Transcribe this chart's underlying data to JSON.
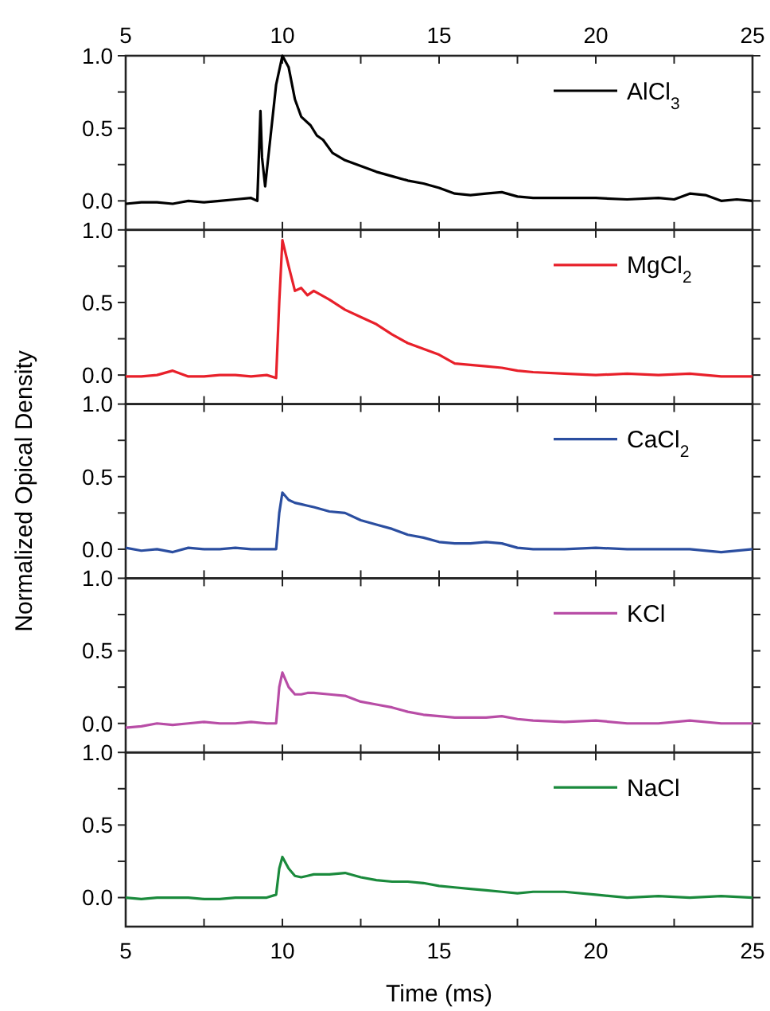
{
  "chart_data": [
    {
      "type": "line",
      "x": [
        5,
        5.5,
        6,
        6.5,
        7,
        7.5,
        8,
        8.5,
        9,
        9.2,
        9.3,
        9.35,
        9.45,
        9.6,
        9.8,
        10.0,
        10.2,
        10.4,
        10.6,
        10.9,
        11.1,
        11.3,
        11.6,
        12,
        12.5,
        13,
        13.5,
        14,
        14.5,
        15,
        15.5,
        16,
        16.5,
        17,
        17.5,
        18,
        19,
        20,
        21,
        22,
        22.5,
        23,
        23.5,
        24,
        24.5,
        25
      ],
      "series": [
        {
          "name": "AlCl$_{3}$",
          "color": "#000000",
          "values": [
            -0.02,
            -0.01,
            -0.01,
            -0.02,
            0.0,
            -0.01,
            0.0,
            0.01,
            0.02,
            0.0,
            0.62,
            0.3,
            0.1,
            0.4,
            0.8,
            1.0,
            0.92,
            0.7,
            0.58,
            0.52,
            0.45,
            0.42,
            0.33,
            0.28,
            0.24,
            0.2,
            0.17,
            0.14,
            0.12,
            0.09,
            0.05,
            0.04,
            0.05,
            0.06,
            0.03,
            0.02,
            0.02,
            0.02,
            0.01,
            0.02,
            0.01,
            0.05,
            0.04,
            0.0,
            0.01,
            0.0
          ]
        }
      ],
      "xlim": [
        5,
        25
      ],
      "xticks": [
        5,
        {
          "value": 7.5,
          "label": null
        },
        10,
        {
          "value": 12.5,
          "label": null
        },
        15,
        {
          "value": 17.5,
          "label": null
        },
        20,
        {
          "value": 22.5,
          "label": null
        },
        25
      ],
      "x2lim": [
        5,
        25
      ],
      "x2ticks": [
        5,
        {
          "value": 7.5,
          "label": null
        },
        10,
        {
          "value": 12.5,
          "label": null
        },
        15,
        {
          "value": 17.5,
          "label": null
        },
        20,
        {
          "value": 22.5,
          "label": null
        },
        25
      ],
      "ylim": [
        -0.2,
        1.0
      ],
      "yticks": [
        {
          "value": 0,
          "label": "0.0"
        },
        {
          "value": 0.25,
          "label": null
        },
        {
          "value": 0.5,
          "label": "0.5"
        },
        {
          "value": 0.75,
          "label": null
        },
        {
          "value": 1,
          "label": "1.0"
        }
      ],
      "tick_labels": "y",
      "legend": "top right"
    },
    {
      "type": "line",
      "x": [
        5,
        5.5,
        6,
        6.5,
        7,
        7.5,
        8,
        8.5,
        9,
        9.5,
        9.8,
        9.9,
        10.0,
        10.2,
        10.4,
        10.6,
        10.8,
        11,
        11.5,
        12,
        12.5,
        13,
        13.5,
        14,
        14.5,
        15,
        15.5,
        16,
        16.5,
        17,
        17.5,
        18,
        19,
        20,
        21,
        22,
        23,
        24,
        25
      ],
      "series": [
        {
          "name": "MgCl$_{2}$",
          "color": "#e8202a",
          "values": [
            -0.01,
            -0.01,
            0.0,
            0.03,
            -0.01,
            -0.01,
            0.0,
            0.0,
            -0.01,
            0.0,
            -0.02,
            0.5,
            0.93,
            0.75,
            0.58,
            0.6,
            0.55,
            0.58,
            0.52,
            0.45,
            0.4,
            0.35,
            0.28,
            0.22,
            0.18,
            0.14,
            0.08,
            0.07,
            0.06,
            0.05,
            0.03,
            0.02,
            0.01,
            0.0,
            0.01,
            0.0,
            0.01,
            -0.01,
            -0.01
          ]
        }
      ],
      "xlim": [
        5,
        25
      ],
      "xticks": [
        5,
        {
          "value": 7.5,
          "label": null
        },
        10,
        {
          "value": 12.5,
          "label": null
        },
        15,
        {
          "value": 17.5,
          "label": null
        },
        20,
        {
          "value": 22.5,
          "label": null
        },
        25
      ],
      "ylim": [
        -0.2,
        1.0
      ],
      "yticks": [
        {
          "value": 0,
          "label": "0.0"
        },
        {
          "value": 0.25,
          "label": null
        },
        {
          "value": 0.5,
          "label": "0.5"
        },
        {
          "value": 0.75,
          "label": null
        },
        {
          "value": 1,
          "label": "1.0"
        }
      ],
      "tick_labels": "y",
      "legend": "top right"
    },
    {
      "type": "line",
      "x": [
        5,
        5.5,
        6,
        6.5,
        7,
        7.5,
        8,
        8.5,
        9,
        9.5,
        9.8,
        9.9,
        10.0,
        10.2,
        10.4,
        10.6,
        10.8,
        11,
        11.5,
        12,
        12.5,
        13,
        13.5,
        14,
        14.5,
        15,
        15.5,
        16,
        16.5,
        17,
        17.5,
        18,
        19,
        20,
        21,
        22,
        23,
        24,
        25
      ],
      "series": [
        {
          "name": "CaCl$_{2}$",
          "color": "#2b4ea0",
          "values": [
            0.01,
            -0.01,
            0.0,
            -0.02,
            0.01,
            0.0,
            0.0,
            0.01,
            0.0,
            0.0,
            0.0,
            0.25,
            0.39,
            0.34,
            0.32,
            0.31,
            0.3,
            0.29,
            0.26,
            0.25,
            0.2,
            0.17,
            0.14,
            0.1,
            0.08,
            0.05,
            0.04,
            0.04,
            0.05,
            0.04,
            0.01,
            0.0,
            0.0,
            0.01,
            0.0,
            0.0,
            0.0,
            -0.02,
            0.0
          ]
        }
      ],
      "xlim": [
        5,
        25
      ],
      "xticks": [
        5,
        {
          "value": 7.5,
          "label": null
        },
        10,
        {
          "value": 12.5,
          "label": null
        },
        15,
        {
          "value": 17.5,
          "label": null
        },
        20,
        {
          "value": 22.5,
          "label": null
        },
        25
      ],
      "ylim": [
        -0.2,
        1.0
      ],
      "yticks": [
        {
          "value": 0,
          "label": "0.0"
        },
        {
          "value": 0.25,
          "label": null
        },
        {
          "value": 0.5,
          "label": "0.5"
        },
        {
          "value": 0.75,
          "label": null
        },
        {
          "value": 1,
          "label": "1.0"
        }
      ],
      "ylabel": "Normalized Opical Density",
      "tick_labels": "y",
      "legend": "top right"
    },
    {
      "type": "line",
      "x": [
        5,
        5.5,
        6,
        6.5,
        7,
        7.5,
        8,
        8.5,
        9,
        9.5,
        9.8,
        9.9,
        10.0,
        10.2,
        10.4,
        10.6,
        10.8,
        11,
        11.5,
        12,
        12.5,
        13,
        13.5,
        14,
        14.5,
        15,
        15.5,
        16,
        16.5,
        17,
        17.5,
        18,
        19,
        20,
        21,
        22,
        23,
        24,
        25
      ],
      "series": [
        {
          "name": "KCl",
          "color": "#b84da6",
          "values": [
            -0.03,
            -0.02,
            0.0,
            -0.01,
            0.0,
            0.01,
            0.0,
            0.0,
            0.01,
            0.0,
            0.0,
            0.25,
            0.35,
            0.25,
            0.2,
            0.2,
            0.21,
            0.21,
            0.2,
            0.19,
            0.15,
            0.13,
            0.11,
            0.08,
            0.06,
            0.05,
            0.04,
            0.04,
            0.04,
            0.05,
            0.03,
            0.02,
            0.01,
            0.02,
            0.0,
            0.0,
            0.02,
            0.0,
            0.0
          ]
        }
      ],
      "xlim": [
        5,
        25
      ],
      "xticks": [
        5,
        {
          "value": 7.5,
          "label": null
        },
        10,
        {
          "value": 12.5,
          "label": null
        },
        15,
        {
          "value": 17.5,
          "label": null
        },
        20,
        {
          "value": 22.5,
          "label": null
        },
        25
      ],
      "ylim": [
        -0.2,
        1.0
      ],
      "yticks": [
        {
          "value": 0,
          "label": "0.0"
        },
        {
          "value": 0.25,
          "label": null
        },
        {
          "value": 0.5,
          "label": "0.5"
        },
        {
          "value": 0.75,
          "label": null
        },
        {
          "value": 1,
          "label": "1.0"
        }
      ],
      "tick_labels": "y",
      "legend": "top right"
    },
    {
      "type": "line",
      "x": [
        5,
        5.5,
        6,
        6.5,
        7,
        7.5,
        8,
        8.5,
        9,
        9.5,
        9.8,
        9.9,
        10.0,
        10.2,
        10.4,
        10.6,
        10.8,
        11,
        11.5,
        12,
        12.5,
        13,
        13.5,
        14,
        14.5,
        15,
        15.5,
        16,
        16.5,
        17,
        17.5,
        18,
        19,
        20,
        21,
        22,
        23,
        24,
        25
      ],
      "series": [
        {
          "name": "NaCl",
          "color": "#1a8a3c",
          "values": [
            0.0,
            -0.01,
            0.0,
            0.0,
            0.0,
            -0.01,
            -0.01,
            0.0,
            0.0,
            0.0,
            0.02,
            0.2,
            0.28,
            0.2,
            0.15,
            0.14,
            0.15,
            0.16,
            0.16,
            0.17,
            0.14,
            0.12,
            0.11,
            0.11,
            0.1,
            0.08,
            0.07,
            0.06,
            0.05,
            0.04,
            0.03,
            0.04,
            0.04,
            0.02,
            0.0,
            0.01,
            0.0,
            0.01,
            0.0
          ]
        }
      ],
      "xlim": [
        5,
        25
      ],
      "xticks": [
        5,
        {
          "value": 7.5,
          "label": null
        },
        10,
        {
          "value": 12.5,
          "label": null
        },
        15,
        {
          "value": 17.5,
          "label": null
        },
        20,
        {
          "value": 22.5,
          "label": null
        },
        25
      ],
      "ylim": [
        -0.2,
        1.0
      ],
      "yticks": [
        {
          "value": 0,
          "label": "0.0"
        },
        {
          "value": 0.25,
          "label": null
        },
        {
          "value": 0.5,
          "label": "0.5"
        },
        {
          "value": 0.75,
          "label": null
        },
        {
          "value": 1,
          "label": "1.0"
        }
      ],
      "xlabel": "Time (ms)",
      "legend": "top right"
    }
  ]
}
